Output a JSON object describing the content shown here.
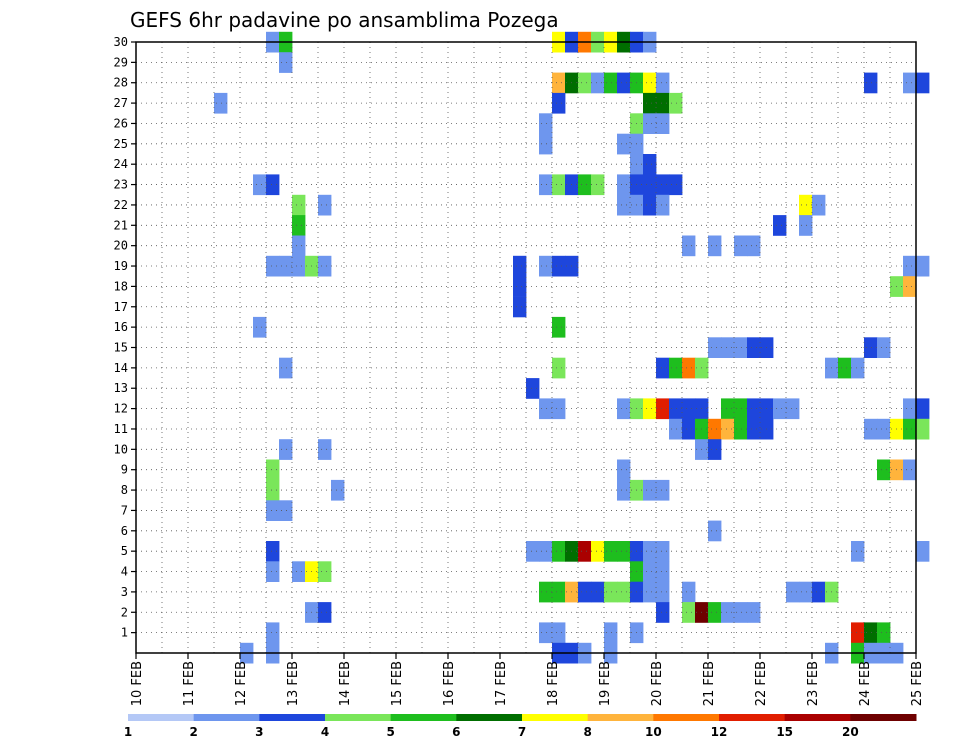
{
  "chart_data": {
    "type": "heatmap",
    "title": "GEFS 6hr padavine po ansamblima Pozega",
    "xlabel": "",
    "ylabel": "",
    "x_ticks": [
      "10 FEB",
      "11 FEB",
      "12 FEB",
      "13 FEB",
      "14 FEB",
      "15 FEB",
      "16 FEB",
      "17 FEB",
      "18 FEB",
      "19 FEB",
      "20 FEB",
      "21 FEB",
      "22 FEB",
      "23 FEB",
      "24 FEB",
      "25 FEB"
    ],
    "x_range_days": [
      10,
      25
    ],
    "y_ticks": [
      1,
      2,
      3,
      4,
      5,
      6,
      7,
      8,
      9,
      10,
      11,
      12,
      13,
      14,
      15,
      16,
      17,
      18,
      19,
      20,
      21,
      22,
      23,
      24,
      25,
      26,
      27,
      28,
      29,
      30
    ],
    "y_range": [
      0,
      30
    ],
    "grid": "dotted",
    "colorbar": {
      "labels": [
        "1",
        "2",
        "3",
        "4",
        "5",
        "6",
        "7",
        "8",
        "10",
        "12",
        "15",
        "20"
      ],
      "colors": [
        "#b4c8f6",
        "#6e96ee",
        "#1e46dc",
        "#7ae65a",
        "#1ebe1e",
        "#006e00",
        "#ffff00",
        "#ffb43c",
        "#ff7800",
        "#e11e00",
        "#aa0000",
        "#6e0000"
      ]
    },
    "cells": [
      [
        30,
        12.5,
        1
      ],
      [
        30,
        12.75,
        4
      ],
      [
        30,
        18,
        6
      ],
      [
        30,
        18.25,
        2
      ],
      [
        30,
        18.5,
        8
      ],
      [
        30,
        18.75,
        3
      ],
      [
        30,
        19,
        6
      ],
      [
        30,
        19.25,
        5
      ],
      [
        30,
        19.5,
        2
      ],
      [
        30,
        19.75,
        1
      ],
      [
        29,
        12.75,
        1
      ],
      [
        28,
        18,
        7
      ],
      [
        28,
        18.25,
        5
      ],
      [
        28,
        18.5,
        3
      ],
      [
        28,
        18.75,
        1
      ],
      [
        28,
        19,
        4
      ],
      [
        28,
        19.25,
        2
      ],
      [
        28,
        19.5,
        4
      ],
      [
        28,
        19.75,
        6
      ],
      [
        28,
        20,
        1
      ],
      [
        28,
        24,
        2
      ],
      [
        28,
        24.75,
        1
      ],
      [
        28,
        25,
        2
      ],
      [
        27,
        11.5,
        1
      ],
      [
        27,
        18,
        2
      ],
      [
        27,
        19.75,
        5
      ],
      [
        27,
        20,
        5
      ],
      [
        27,
        20.25,
        3
      ],
      [
        26,
        17.75,
        1
      ],
      [
        26,
        19.5,
        3
      ],
      [
        26,
        19.75,
        1
      ],
      [
        26,
        20,
        1
      ],
      [
        25,
        17.75,
        1
      ],
      [
        25,
        19.25,
        1
      ],
      [
        25,
        19.5,
        1
      ],
      [
        24,
        19.5,
        1
      ],
      [
        24,
        19.75,
        2
      ],
      [
        23,
        12.25,
        1
      ],
      [
        23,
        12.5,
        2
      ],
      [
        23,
        17.75,
        1
      ],
      [
        23,
        18,
        3
      ],
      [
        23,
        18.25,
        2
      ],
      [
        23,
        18.5,
        4
      ],
      [
        23,
        18.75,
        3
      ],
      [
        23,
        19.25,
        1
      ],
      [
        23,
        19.5,
        2
      ],
      [
        23,
        19.75,
        2
      ],
      [
        23,
        20,
        2
      ],
      [
        23,
        20.25,
        2
      ],
      [
        22,
        13,
        3
      ],
      [
        22,
        13.5,
        1
      ],
      [
        22,
        19.25,
        1
      ],
      [
        22,
        19.5,
        1
      ],
      [
        22,
        19.75,
        2
      ],
      [
        22,
        20,
        1
      ],
      [
        22,
        22.75,
        6
      ],
      [
        22,
        23,
        1
      ],
      [
        21,
        13,
        4
      ],
      [
        21,
        22.25,
        2
      ],
      [
        21,
        22.75,
        1
      ],
      [
        20,
        13,
        1
      ],
      [
        20,
        20.5,
        1
      ],
      [
        20,
        21,
        1
      ],
      [
        20,
        21.5,
        1
      ],
      [
        20,
        21.75,
        1
      ],
      [
        19,
        12.5,
        1
      ],
      [
        19,
        12.75,
        1
      ],
      [
        19,
        13,
        1
      ],
      [
        19,
        13.25,
        3
      ],
      [
        19,
        13.5,
        1
      ],
      [
        19,
        17.25,
        2
      ],
      [
        19,
        17.75,
        1
      ],
      [
        19,
        18,
        2
      ],
      [
        19,
        18.25,
        2
      ],
      [
        19,
        24.75,
        1
      ],
      [
        19,
        25,
        1
      ],
      [
        18,
        17.25,
        2
      ],
      [
        18,
        24.5,
        3
      ],
      [
        18,
        24.75,
        7
      ],
      [
        17,
        17.25,
        2
      ],
      [
        16,
        12.25,
        1
      ],
      [
        16,
        18,
        4
      ],
      [
        15,
        21,
        1
      ],
      [
        15,
        21.25,
        1
      ],
      [
        15,
        21.5,
        1
      ],
      [
        15,
        21.75,
        2
      ],
      [
        15,
        22,
        2
      ],
      [
        15,
        24,
        2
      ],
      [
        15,
        24.25,
        1
      ],
      [
        14,
        12.75,
        1
      ],
      [
        14,
        18,
        3
      ],
      [
        14,
        20,
        2
      ],
      [
        14,
        20.25,
        4
      ],
      [
        14,
        20.5,
        8
      ],
      [
        14,
        20.75,
        3
      ],
      [
        14,
        23.25,
        1
      ],
      [
        14,
        23.5,
        4
      ],
      [
        14,
        23.75,
        1
      ],
      [
        13,
        17.5,
        2
      ],
      [
        12,
        17.75,
        1
      ],
      [
        12,
        18,
        1
      ],
      [
        12,
        19.25,
        1
      ],
      [
        12,
        19.5,
        3
      ],
      [
        12,
        19.75,
        6
      ],
      [
        12,
        20,
        9
      ],
      [
        12,
        20.25,
        2
      ],
      [
        12,
        20.5,
        2
      ],
      [
        12,
        20.75,
        2
      ],
      [
        12,
        21.25,
        4
      ],
      [
        12,
        21.5,
        4
      ],
      [
        12,
        21.75,
        2
      ],
      [
        12,
        22,
        2
      ],
      [
        12,
        22.25,
        1
      ],
      [
        12,
        22.5,
        1
      ],
      [
        12,
        24.75,
        1
      ],
      [
        12,
        25,
        2
      ],
      [
        11,
        20.25,
        1
      ],
      [
        11,
        20.5,
        2
      ],
      [
        11,
        20.75,
        4
      ],
      [
        11,
        21,
        8
      ],
      [
        11,
        21.25,
        7
      ],
      [
        11,
        21.5,
        4
      ],
      [
        11,
        21.75,
        2
      ],
      [
        11,
        22,
        2
      ],
      [
        11,
        24,
        1
      ],
      [
        11,
        24.25,
        1
      ],
      [
        11,
        24.5,
        6
      ],
      [
        11,
        24.75,
        4
      ],
      [
        11,
        25,
        3
      ],
      [
        10,
        12.75,
        1
      ],
      [
        10,
        13.5,
        1
      ],
      [
        10,
        20.75,
        1
      ],
      [
        10,
        21,
        2
      ],
      [
        9,
        12.5,
        3
      ],
      [
        9,
        19.25,
        1
      ],
      [
        9,
        24.25,
        4
      ],
      [
        9,
        24.5,
        7
      ],
      [
        9,
        24.75,
        1
      ],
      [
        8,
        12.5,
        3
      ],
      [
        8,
        13.75,
        1
      ],
      [
        8,
        19.25,
        1
      ],
      [
        8,
        19.5,
        3
      ],
      [
        8,
        19.75,
        1
      ],
      [
        8,
        20,
        1
      ],
      [
        7,
        12.5,
        1
      ],
      [
        7,
        12.75,
        1
      ],
      [
        6,
        21,
        1
      ],
      [
        5,
        12.5,
        2
      ],
      [
        5,
        17.5,
        1
      ],
      [
        5,
        17.75,
        1
      ],
      [
        5,
        18,
        4
      ],
      [
        5,
        18.25,
        5
      ],
      [
        5,
        18.5,
        10
      ],
      [
        5,
        18.75,
        6
      ],
      [
        5,
        19,
        4
      ],
      [
        5,
        19.25,
        4
      ],
      [
        5,
        19.5,
        2
      ],
      [
        5,
        19.75,
        1
      ],
      [
        5,
        20,
        1
      ],
      [
        5,
        23.75,
        1
      ],
      [
        5,
        25,
        1
      ],
      [
        4,
        12.5,
        1
      ],
      [
        4,
        13,
        1
      ],
      [
        4,
        13.25,
        6
      ],
      [
        4,
        13.5,
        3
      ],
      [
        4,
        19.5,
        4
      ],
      [
        4,
        19.75,
        1
      ],
      [
        4,
        20,
        1
      ],
      [
        3,
        17.75,
        4
      ],
      [
        3,
        18,
        4
      ],
      [
        3,
        18.25,
        7
      ],
      [
        3,
        18.5,
        2
      ],
      [
        3,
        18.75,
        2
      ],
      [
        3,
        19,
        3
      ],
      [
        3,
        19.25,
        3
      ],
      [
        3,
        19.5,
        2
      ],
      [
        3,
        19.75,
        1
      ],
      [
        3,
        20,
        1
      ],
      [
        3,
        20.5,
        1
      ],
      [
        3,
        22.5,
        1
      ],
      [
        3,
        22.75,
        1
      ],
      [
        3,
        23,
        2
      ],
      [
        3,
        23.25,
        3
      ],
      [
        2,
        13.25,
        1
      ],
      [
        2,
        13.5,
        2
      ],
      [
        2,
        20,
        2
      ],
      [
        2,
        20.5,
        3
      ],
      [
        2,
        20.75,
        11
      ],
      [
        2,
        21,
        4
      ],
      [
        2,
        21.25,
        1
      ],
      [
        2,
        21.5,
        1
      ],
      [
        2,
        21.75,
        1
      ],
      [
        1,
        12.5,
        1
      ],
      [
        1,
        17.75,
        1
      ],
      [
        1,
        18,
        1
      ],
      [
        1,
        19,
        1
      ],
      [
        1,
        19.5,
        1
      ],
      [
        1,
        23.75,
        9
      ],
      [
        1,
        24,
        5
      ],
      [
        1,
        24.25,
        4
      ],
      [
        0,
        12,
        1
      ],
      [
        0,
        12.5,
        1
      ],
      [
        0,
        18,
        2
      ],
      [
        0,
        18.25,
        2
      ],
      [
        0,
        18.5,
        1
      ],
      [
        0,
        19,
        1
      ],
      [
        0,
        23.25,
        1
      ],
      [
        0,
        23.75,
        4
      ],
      [
        0,
        24,
        1
      ],
      [
        0,
        24.25,
        1
      ],
      [
        0,
        24.5,
        1
      ]
    ]
  }
}
